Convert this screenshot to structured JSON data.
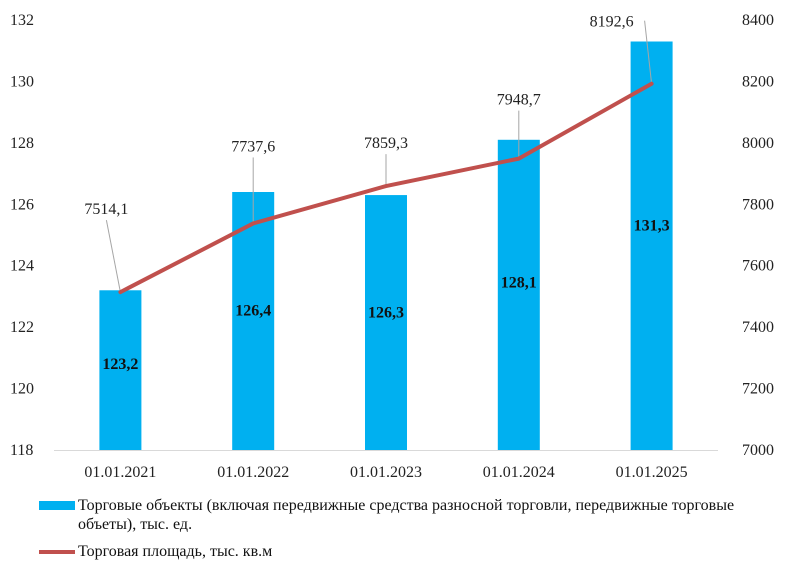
{
  "chart_data": {
    "type": "bar",
    "categories": [
      "01.01.2021",
      "01.01.2022",
      "01.01.2023",
      "01.01.2024",
      "01.01.2025"
    ],
    "series": [
      {
        "name": "Торговые объекты (включая передвижные средства разносной торговли, передвижные торговые объеты), тыс. ед.",
        "type": "bar",
        "axis": "left",
        "values": [
          123.2,
          126.4,
          126.3,
          128.1,
          131.3
        ],
        "labels": [
          "123,2",
          "126,4",
          "126,3",
          "128,1",
          "131,3"
        ],
        "color": "#00b0f0"
      },
      {
        "name": "Торговая площадь, тыс. кв.м",
        "type": "line",
        "axis": "right",
        "values": [
          7514.1,
          7737.6,
          7859.3,
          7948.7,
          8192.6
        ],
        "labels": [
          "7514,1",
          "7737,6",
          "7859,3",
          "7948,7",
          "8192,6"
        ],
        "color": "#c0504d"
      }
    ],
    "y_left": {
      "min": 118,
      "max": 132,
      "ticks": [
        118,
        120,
        122,
        124,
        126,
        128,
        130,
        132
      ]
    },
    "y_right": {
      "min": 7000,
      "max": 8400,
      "ticks": [
        7000,
        7200,
        7400,
        7600,
        7800,
        8000,
        8200,
        8400
      ]
    },
    "grid": false,
    "legend_position": "bottom"
  }
}
